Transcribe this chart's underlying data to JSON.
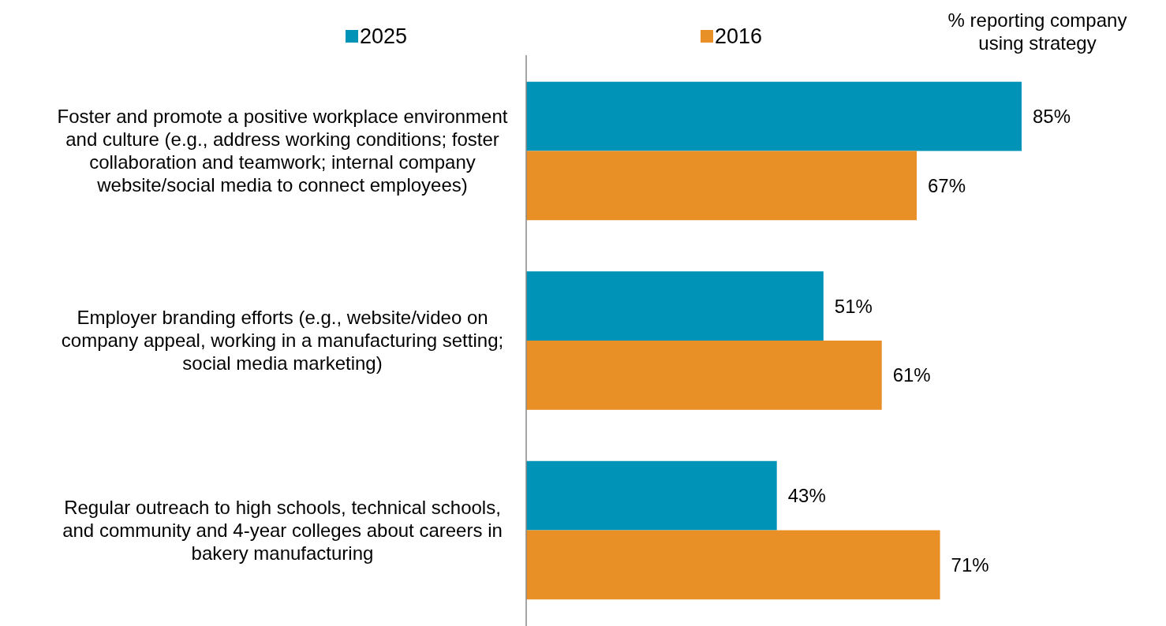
{
  "chart_data": {
    "type": "bar",
    "orientation": "horizontal",
    "xlabel": "% reporting company using strategy",
    "categories": [
      "Foster and promote a positive workplace environment and culture (e.g., address working conditions; foster collaboration and teamwork; internal company website/social media to connect employees)",
      "Employer branding efforts (e.g., website/video on company appeal, working in a manufacturing setting; social media marketing)",
      "Regular outreach to high schools, technical schools, and community and 4-year colleges about careers in bakery manufacturing"
    ],
    "series": [
      {
        "name": "2025",
        "color": "#0093b8",
        "values": [
          85,
          51,
          43
        ],
        "value_labels": [
          "85%",
          "51%",
          "43%"
        ]
      },
      {
        "name": "2016",
        "color": "#e88f26",
        "values": [
          67,
          61,
          71
        ],
        "value_labels": [
          "67%",
          "61%",
          "71%"
        ]
      }
    ],
    "legend": "top"
  }
}
